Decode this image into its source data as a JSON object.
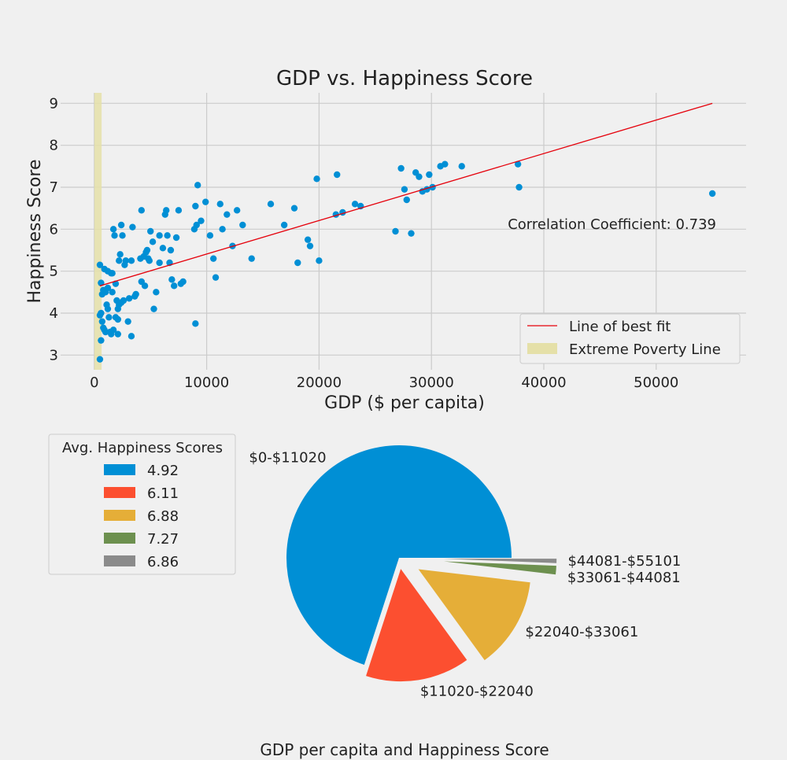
{
  "figure_caption": "GDP per capita and Happiness Score",
  "chart_data": [
    {
      "type": "scatter",
      "title": "GDP vs. Happiness Score",
      "xlabel": "GDP ($ per capita)",
      "ylabel": "Happiness Score",
      "xlim": [
        -3000,
        58000
      ],
      "ylim": [
        2.65,
        9.25
      ],
      "x_ticks": [
        0,
        10000,
        20000,
        30000,
        40000,
        50000
      ],
      "y_ticks": [
        3,
        4,
        5,
        6,
        7,
        8,
        9
      ],
      "x_tick_labels": [
        "0",
        "10000",
        "20000",
        "30000",
        "40000",
        "50000"
      ],
      "y_tick_labels": [
        "3",
        "4",
        "5",
        "6",
        "7",
        "8",
        "9"
      ],
      "grid": true,
      "point_color": "#008fd5",
      "line_color": "#e5000b",
      "band_color": "#e5e0a8",
      "points": [
        [
          500,
          5.15
        ],
        [
          600,
          4.72
        ],
        [
          700,
          4.45
        ],
        [
          800,
          4.55
        ],
        [
          900,
          5.05
        ],
        [
          1000,
          4.5
        ],
        [
          1100,
          4.2
        ],
        [
          1200,
          4.1
        ],
        [
          1300,
          3.9
        ],
        [
          1400,
          3.55
        ],
        [
          1500,
          3.5
        ],
        [
          600,
          3.35
        ],
        [
          700,
          3.8
        ],
        [
          800,
          3.65
        ],
        [
          500,
          3.95
        ],
        [
          600,
          4.0
        ],
        [
          900,
          3.6
        ],
        [
          1000,
          3.55
        ],
        [
          1200,
          5.0
        ],
        [
          1500,
          4.95
        ],
        [
          1700,
          6.0
        ],
        [
          1800,
          5.85
        ],
        [
          1900,
          4.7
        ],
        [
          2000,
          4.3
        ],
        [
          2100,
          4.1
        ],
        [
          2300,
          5.4
        ],
        [
          2400,
          6.1
        ],
        [
          2500,
          5.85
        ],
        [
          1600,
          4.95
        ],
        [
          1700,
          3.6
        ],
        [
          2100,
          3.85
        ],
        [
          2200,
          5.25
        ],
        [
          2400,
          4.25
        ],
        [
          2600,
          4.3
        ],
        [
          2800,
          5.25
        ],
        [
          3000,
          3.8
        ],
        [
          3100,
          4.35
        ],
        [
          3300,
          5.25
        ],
        [
          3400,
          6.05
        ],
        [
          3600,
          4.4
        ],
        [
          3700,
          4.45
        ],
        [
          4100,
          5.3
        ],
        [
          4200,
          6.45
        ],
        [
          4400,
          5.35
        ],
        [
          4600,
          5.45
        ],
        [
          4700,
          5.5
        ],
        [
          4800,
          5.3
        ],
        [
          5000,
          5.95
        ],
        [
          5200,
          5.7
        ],
        [
          5300,
          4.1
        ],
        [
          5500,
          4.5
        ],
        [
          5800,
          5.85
        ],
        [
          6100,
          5.55
        ],
        [
          6300,
          6.35
        ],
        [
          6400,
          6.45
        ],
        [
          6500,
          5.85
        ],
        [
          6700,
          5.2
        ],
        [
          6900,
          4.8
        ],
        [
          7100,
          4.65
        ],
        [
          7300,
          5.8
        ],
        [
          7500,
          6.45
        ],
        [
          7700,
          4.7
        ],
        [
          8900,
          6.0
        ],
        [
          9100,
          6.1
        ],
        [
          9200,
          7.05
        ],
        [
          9500,
          6.2
        ],
        [
          9900,
          6.65
        ],
        [
          10300,
          5.85
        ],
        [
          10600,
          5.3
        ],
        [
          10800,
          4.85
        ],
        [
          11200,
          6.6
        ],
        [
          11400,
          6.0
        ],
        [
          11800,
          6.35
        ],
        [
          12300,
          5.6
        ],
        [
          12700,
          6.45
        ],
        [
          13200,
          6.1
        ],
        [
          14000,
          5.3
        ],
        [
          15700,
          6.6
        ],
        [
          16900,
          6.1
        ],
        [
          17800,
          6.5
        ],
        [
          18100,
          5.2
        ],
        [
          19000,
          5.75
        ],
        [
          19200,
          5.6
        ],
        [
          19800,
          7.2
        ],
        [
          20000,
          5.25
        ],
        [
          21500,
          6.35
        ],
        [
          21600,
          7.3
        ],
        [
          22100,
          6.4
        ],
        [
          23200,
          6.6
        ],
        [
          23700,
          6.55
        ],
        [
          26800,
          5.95
        ],
        [
          27300,
          7.45
        ],
        [
          27600,
          6.95
        ],
        [
          27800,
          6.7
        ],
        [
          28200,
          5.9
        ],
        [
          28600,
          7.35
        ],
        [
          28900,
          7.25
        ],
        [
          29200,
          6.9
        ],
        [
          29600,
          6.95
        ],
        [
          29800,
          7.3
        ],
        [
          30100,
          7.0
        ],
        [
          30800,
          7.5
        ],
        [
          31200,
          7.55
        ],
        [
          32700,
          7.5
        ],
        [
          37700,
          7.55
        ],
        [
          37800,
          7.0
        ],
        [
          55000,
          6.85
        ],
        [
          500,
          2.9
        ],
        [
          2100,
          3.5
        ],
        [
          3300,
          3.45
        ],
        [
          9000,
          3.75
        ],
        [
          2200,
          4.2
        ],
        [
          1900,
          3.9
        ],
        [
          1600,
          4.5
        ],
        [
          1200,
          4.6
        ],
        [
          4200,
          4.75
        ],
        [
          4500,
          4.65
        ],
        [
          5800,
          5.2
        ],
        [
          6800,
          5.5
        ],
        [
          4900,
          5.25
        ],
        [
          2700,
          5.15
        ],
        [
          7900,
          4.75
        ],
        [
          9000,
          6.55
        ]
      ],
      "fit_line": {
        "x": [
          500,
          55000
        ],
        "y": [
          4.65,
          9.0
        ]
      },
      "band": {
        "x": [
          0,
          650
        ]
      },
      "annotation": "Correlation Coefficient: 0.739",
      "legend": {
        "position": "lower right",
        "entries": [
          {
            "label": "Line of best fit",
            "kind": "line",
            "color": "#e5000b"
          },
          {
            "label": "Extreme Poverty Line",
            "kind": "patch",
            "color": "#e5e0a8"
          }
        ]
      }
    },
    {
      "type": "pie",
      "labels": [
        "$0-$11020",
        "$11020-$22040",
        "$22040-$33061",
        "$33061-$44081",
        "$44081-$55101"
      ],
      "values": [
        112,
        24,
        21,
        2,
        1
      ],
      "explode": [
        0,
        0.1,
        0.2,
        0.4,
        0.4
      ],
      "colors": [
        "#008fd5",
        "#fc4f30",
        "#e5ae38",
        "#6d904f",
        "#8b8b8b"
      ],
      "legend": {
        "title": "Avg. Happiness Scores",
        "position": "upper left",
        "entries": [
          "4.92",
          "6.11",
          "6.88",
          "7.27",
          "6.86"
        ]
      }
    }
  ]
}
